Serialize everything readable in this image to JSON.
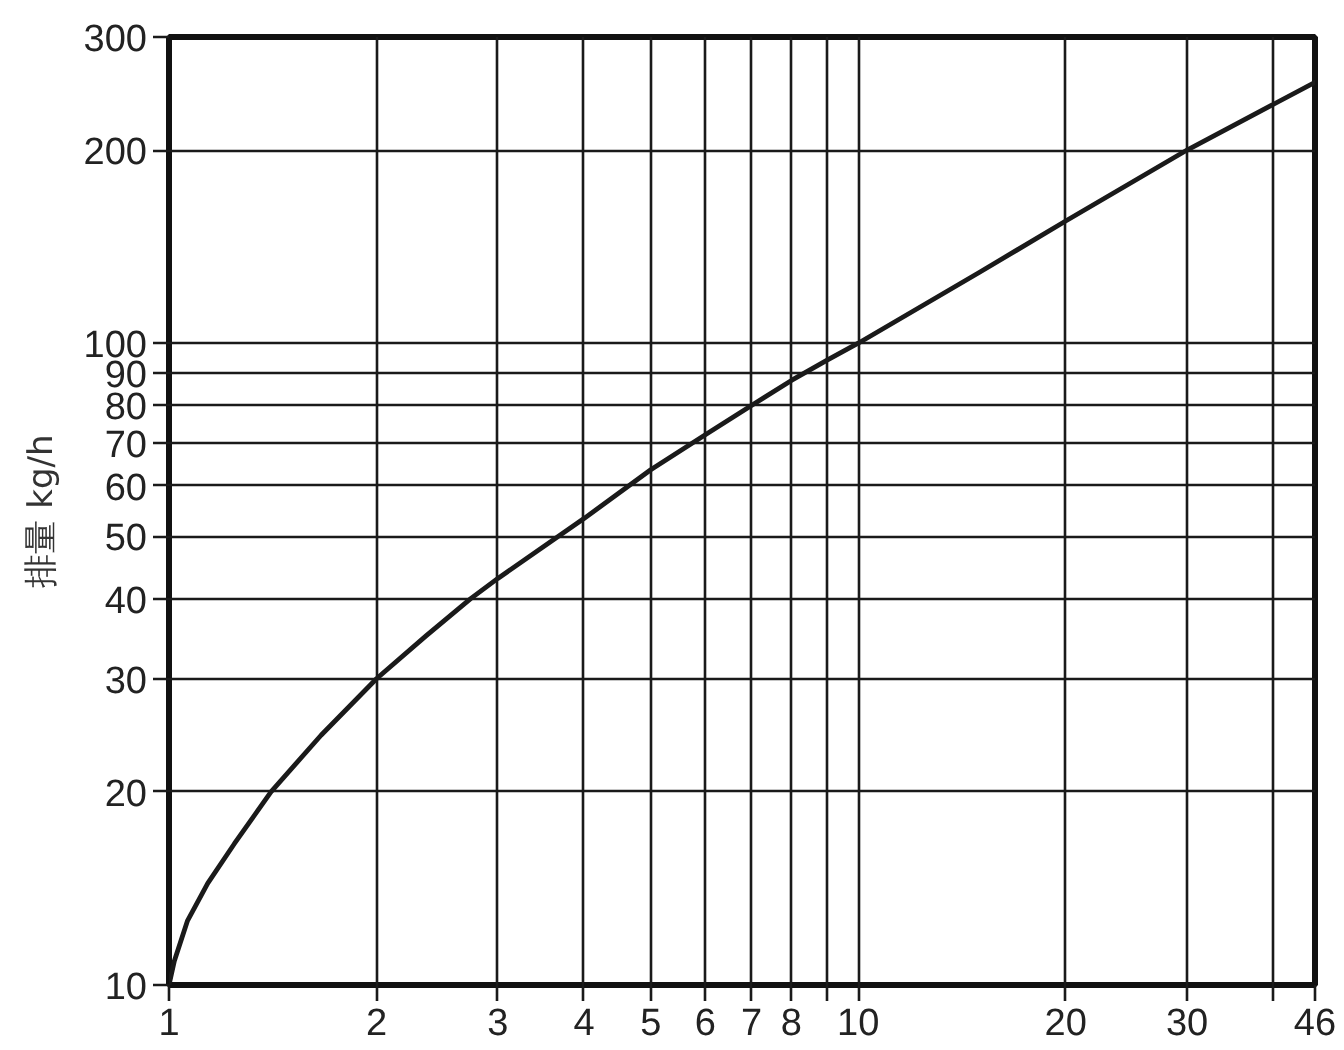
{
  "chart_data": {
    "type": "line",
    "ylabel": "排量 kg/h",
    "x": [
      1,
      1.018,
      1.064,
      1.138,
      1.244,
      1.406,
      1.662,
      2,
      2.36,
      2.74,
      3,
      4,
      5,
      6,
      7,
      8,
      9,
      10,
      15,
      20,
      30,
      46
    ],
    "series": [
      {
        "color": "#1a1a1a",
        "values": [
          10,
          10.9,
          12.6,
          14.4,
          16.6,
          20,
          24.5,
          30,
          35,
          40,
          43,
          53.3,
          63.5,
          72,
          80,
          87.5,
          94,
          100,
          129,
          155,
          200,
          255
        ]
      }
    ],
    "xlim": [
      1,
      46
    ],
    "ylim": [
      10,
      300
    ],
    "xticks": [
      1,
      2,
      3,
      4,
      5,
      6,
      7,
      8,
      {
        "value": 9,
        "label": null
      },
      10,
      20,
      30,
      {
        "value": 40,
        "label": null
      },
      46
    ],
    "yticks": [
      10,
      20,
      30,
      40,
      50,
      60,
      70,
      80,
      90,
      100,
      200,
      300
    ],
    "log": "xy",
    "grid": true,
    "line_style": "solid"
  }
}
